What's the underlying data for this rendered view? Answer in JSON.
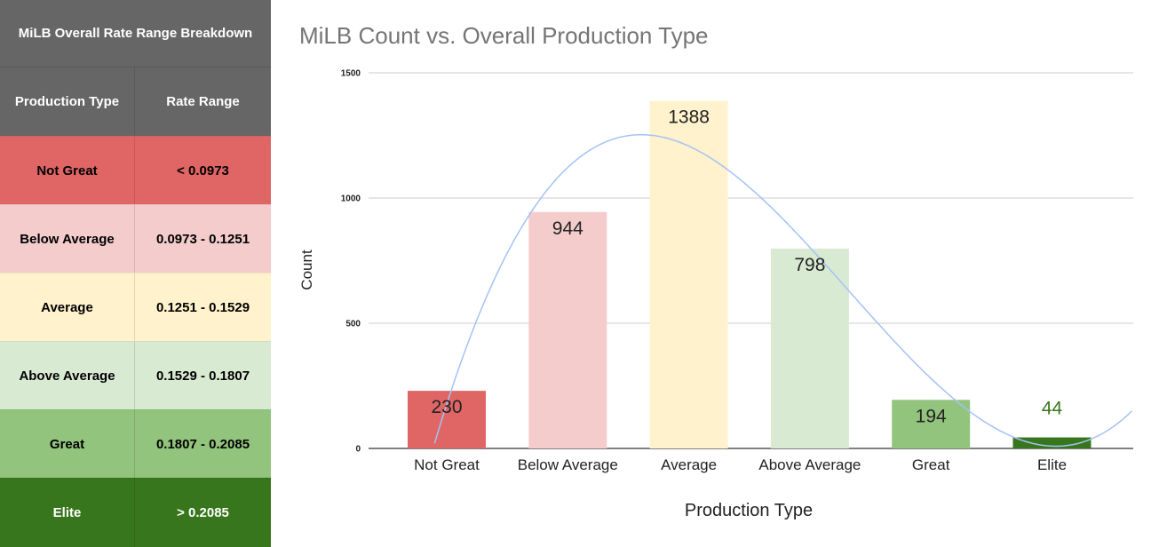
{
  "table": {
    "title": "MiLB Overall Rate Range Breakdown",
    "headers": [
      "Production Type",
      "Rate Range"
    ],
    "rows": [
      {
        "type": "Not Great",
        "range": "< 0.0973",
        "bg": "#e06666",
        "color": "#000000"
      },
      {
        "type": "Below Average",
        "range": "0.0973 - 0.1251",
        "bg": "#f4cccc",
        "color": "#000000"
      },
      {
        "type": "Average",
        "range": "0.1251 - 0.1529",
        "bg": "#fff2cc",
        "color": "#000000"
      },
      {
        "type": "Above Average",
        "range": "0.1529 - 0.1807",
        "bg": "#d9ead3",
        "color": "#000000"
      },
      {
        "type": "Great",
        "range": "0.1807 - 0.2085",
        "bg": "#93c47d",
        "color": "#000000"
      },
      {
        "type": "Elite",
        "range": "> 0.2085",
        "bg": "#38761d",
        "color": "#ffffff"
      }
    ]
  },
  "chart_data": {
    "type": "bar",
    "title": "MiLB Count vs. Overall Production Type",
    "xlabel": "Production Type",
    "ylabel": "Count",
    "ylim": [
      0,
      1500
    ],
    "yticks": [
      0,
      500,
      1000,
      1500
    ],
    "grid": true,
    "legend": "none",
    "categories": [
      "Not Great",
      "Below Average",
      "Average",
      "Above Average",
      "Great",
      "Elite"
    ],
    "values": [
      230,
      944,
      1388,
      798,
      194,
      44
    ],
    "bar_colors": [
      "#e06666",
      "#f4cccc",
      "#fff2cc",
      "#d9ead3",
      "#93c47d",
      "#38761d"
    ],
    "label_colors": [
      "#222222",
      "#222222",
      "#222222",
      "#222222",
      "#222222",
      "#38761d"
    ],
    "trendline": {
      "type": "polynomial",
      "color": "#a4c2f4"
    }
  }
}
